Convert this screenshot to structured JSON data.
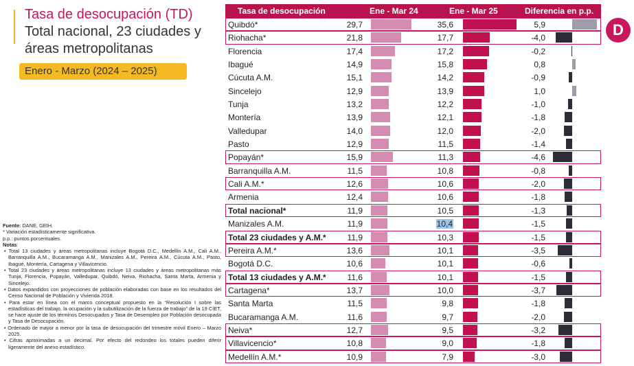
{
  "title_part1": "Tasa de desocupación",
  "title_abbr": "(TD)",
  "title_part2": "Total nacional, 23 ciudades y áreas metropolitanas",
  "period": "Enero - Marzo (2024 – 2025)",
  "logo_letter": "D",
  "notes": {
    "fuente_label": "Fuente",
    "fuente_text": ": DANE, GEIH.",
    "asterisk": "* Variación estadísticamente significativa.",
    "pp": "p.p.: puntos porcentuales.",
    "notas_label": "Notas",
    "items": [
      "• Total 13 ciudades y áreas metropolitanas incluye Bogotá D.C., Medellín A.M., Cali A.M., Barranquilla A.M., Bucaramanga A.M., Manizales A.M., Pereira A.M., Cúcuta A.M., Pasto, Ibagué, Montería, Cartagena y Villavicencio.",
      "• Total 23 ciudades y áreas metropolitanas incluye 13 ciudades y áreas metropolitanas más Tunja, Florencia, Popayán, Valledupar, Quibdó, Neiva, Riohacha, Santa Marta, Armenia y Sincelejo.",
      "• Datos expandidos con proyecciones de población elaboradas con base en los resultados del Censo Nacional de Población y Vivienda 2018.",
      "• Para estar en línea con el marco conceptual propuesto en la “Resolución I sobre las estadísticas del trabajo, la ocupación y la subutilización de la fuerza de trabajo” de la 19 CIET, se hace ajuste de los términos Desocupados y Tasa de Desempleo por Población desocupada y Tasa de Desocupación.",
      "• Ordenado de mayor a menor por la tasa de desocupación del trimestre móvil Enero – Marzo 2025.",
      "• Cifras aproximadas a un decimal. Por efecto del redondeo los totales pueden diferir ligeramente del anexo estadístico."
    ]
  },
  "chart_data": {
    "type": "table",
    "columns": [
      "Tasa de desocupación",
      "Ene - Mar 24",
      "Ene - Mar 25",
      "Diferencia en p.p."
    ],
    "rows": [
      {
        "name": "Quibdó*",
        "v24": 29.7,
        "v25": 35.6,
        "diff": 5.9,
        "boxed": true,
        "bold": false
      },
      {
        "name": "Riohacha*",
        "v24": 21.8,
        "v25": 17.7,
        "diff": -4.0,
        "boxed": true,
        "bold": false
      },
      {
        "name": "Florencia",
        "v24": 17.4,
        "v25": 17.2,
        "diff": -0.2,
        "boxed": false,
        "bold": false
      },
      {
        "name": "Ibagué",
        "v24": 14.9,
        "v25": 15.8,
        "diff": 0.8,
        "boxed": false,
        "bold": false
      },
      {
        "name": "Cúcuta A.M.",
        "v24": 15.1,
        "v25": 14.2,
        "diff": -0.9,
        "boxed": false,
        "bold": false
      },
      {
        "name": "Sincelejo",
        "v24": 12.9,
        "v25": 13.9,
        "diff": 1.0,
        "boxed": false,
        "bold": false
      },
      {
        "name": "Tunja",
        "v24": 13.2,
        "v25": 12.2,
        "diff": -1.0,
        "boxed": false,
        "bold": false
      },
      {
        "name": "Montería",
        "v24": 13.9,
        "v25": 12.1,
        "diff": -1.8,
        "boxed": false,
        "bold": false
      },
      {
        "name": "Valledupar",
        "v24": 14.0,
        "v25": 12.0,
        "diff": -2.0,
        "boxed": false,
        "bold": false
      },
      {
        "name": "Pasto",
        "v24": 12.9,
        "v25": 11.5,
        "diff": -1.4,
        "boxed": false,
        "bold": false
      },
      {
        "name": "Popayán*",
        "v24": 15.9,
        "v25": 11.3,
        "diff": -4.6,
        "boxed": true,
        "bold": false
      },
      {
        "name": "Barranquilla A.M.",
        "v24": 11.5,
        "v25": 10.8,
        "diff": -0.8,
        "boxed": false,
        "bold": false
      },
      {
        "name": "Cali A.M.*",
        "v24": 12.6,
        "v25": 10.6,
        "diff": -2.0,
        "boxed": true,
        "bold": false
      },
      {
        "name": "Armenia",
        "v24": 12.4,
        "v25": 10.6,
        "diff": -1.8,
        "boxed": false,
        "bold": false
      },
      {
        "name": "Total nacional*",
        "v24": 11.9,
        "v25": 10.5,
        "diff": -1.3,
        "boxed": true,
        "bold": true
      },
      {
        "name": "Manizales A.M.",
        "v24": 11.9,
        "v25": 10.4,
        "diff": -1.5,
        "boxed": false,
        "bold": false,
        "highlight": true
      },
      {
        "name": "Total 23 ciudades y A.M.*",
        "v24": 11.9,
        "v25": 10.3,
        "diff": -1.5,
        "boxed": true,
        "bold": true
      },
      {
        "name": "Pereira A.M.*",
        "v24": 13.6,
        "v25": 10.1,
        "diff": -3.5,
        "boxed": true,
        "bold": false
      },
      {
        "name": "Bogotá D.C.",
        "v24": 10.6,
        "v25": 10.1,
        "diff": -0.6,
        "boxed": false,
        "bold": false
      },
      {
        "name": "Total 13 ciudades y A.M.*",
        "v24": 11.6,
        "v25": 10.1,
        "diff": -1.5,
        "boxed": true,
        "bold": true
      },
      {
        "name": "Cartagena*",
        "v24": 13.7,
        "v25": 10.0,
        "diff": -3.7,
        "boxed": true,
        "bold": false
      },
      {
        "name": "Santa Marta",
        "v24": 11.5,
        "v25": 9.8,
        "diff": -1.8,
        "boxed": false,
        "bold": false
      },
      {
        "name": "Bucaramanga A.M.",
        "v24": 11.6,
        "v25": 9.7,
        "diff": -2.0,
        "boxed": false,
        "bold": false
      },
      {
        "name": "Neiva*",
        "v24": 12.7,
        "v25": 9.5,
        "diff": -3.2,
        "boxed": true,
        "bold": false
      },
      {
        "name": "Villavicencio*",
        "v24": 10.8,
        "v25": 9.0,
        "diff": -1.8,
        "boxed": true,
        "bold": false
      },
      {
        "name": "Medellín A.M.*",
        "v24": 10.9,
        "v25": 7.9,
        "diff": -3.0,
        "boxed": true,
        "bold": false
      }
    ],
    "colors": {
      "header": "#b8134f",
      "bar24": "#d48db0",
      "bar25": "#c0104e",
      "diff_negative": "#2f2c38",
      "diff_positive": "#9e9bab",
      "box": "#c8175d"
    }
  }
}
